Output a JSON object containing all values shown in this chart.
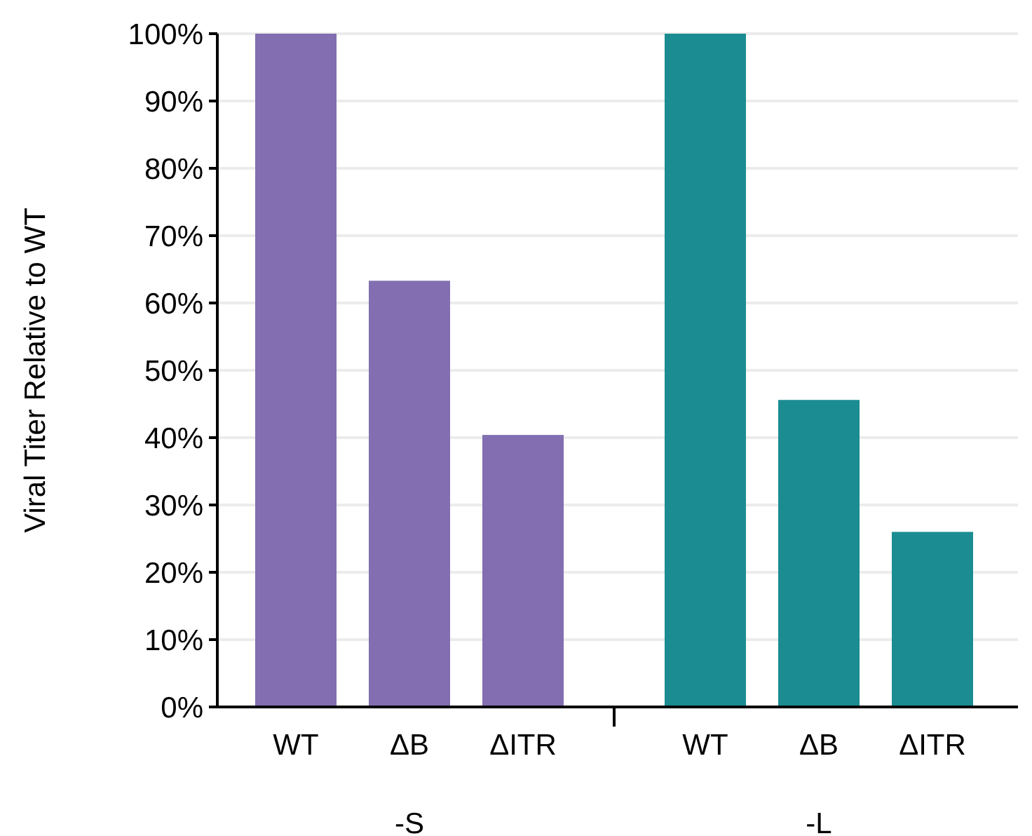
{
  "chart_data": {
    "type": "bar",
    "ylabel": "Viral Titer Relative to WT",
    "categories": [
      "WT",
      "ΔB",
      "ΔITR",
      "WT",
      "ΔB",
      "ΔITR"
    ],
    "values": [
      100,
      63.3,
      40.4,
      100,
      45.6,
      26.0
    ],
    "colors": [
      "#826eb0",
      "#826eb0",
      "#826eb0",
      "#1b8c92",
      "#1b8c92",
      "#1b8c92"
    ],
    "annotations": [
      "-S",
      "-L"
    ],
    "ylim": [
      0,
      100
    ],
    "yticks": [
      {
        "value": 0,
        "label": "0%"
      },
      {
        "value": 10,
        "label": "10%"
      },
      {
        "value": 20,
        "label": "20%"
      },
      {
        "value": 30,
        "label": "30%"
      },
      {
        "value": 40,
        "label": "40%"
      },
      {
        "value": 50,
        "label": "50%"
      },
      {
        "value": 60,
        "label": "60%"
      },
      {
        "value": 70,
        "label": "70%"
      },
      {
        "value": 80,
        "label": "80%"
      },
      {
        "value": 90,
        "label": "90%"
      },
      {
        "value": 100,
        "label": "100%"
      }
    ],
    "grid": "y"
  }
}
